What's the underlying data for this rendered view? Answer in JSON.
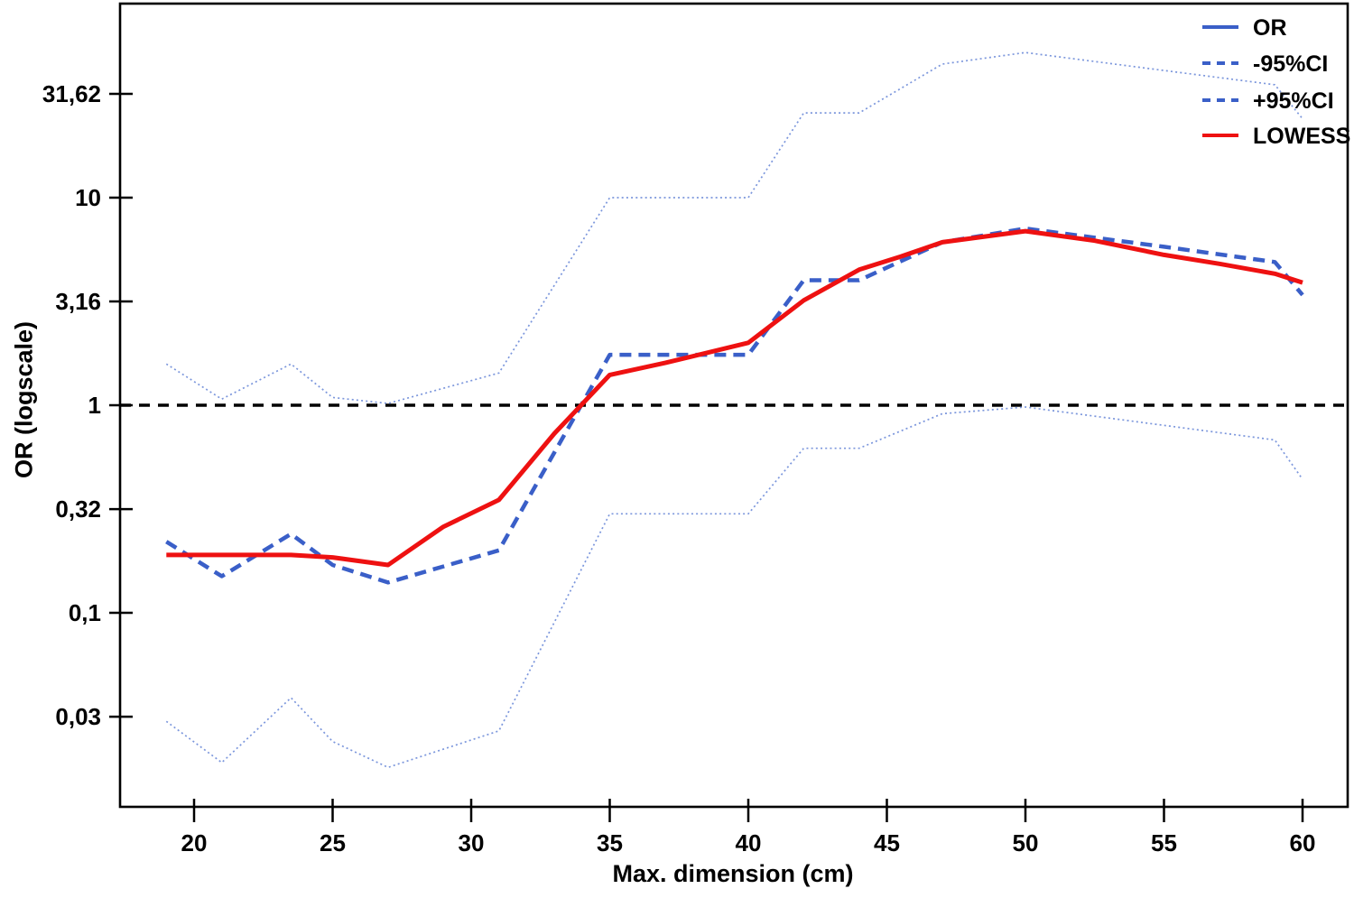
{
  "figure": {
    "background": "#ffffff",
    "axis_color": "#000000",
    "frame": true
  },
  "chart_data": {
    "type": "line",
    "title": "",
    "xlabel": "Max. dimension (cm)",
    "ylabel": "OR (logscale)",
    "x_scale": "linear",
    "y_scale": "log10",
    "grid": false,
    "legend_position": "top-right",
    "x_ticks": [
      20,
      25,
      30,
      35,
      40,
      45,
      50,
      55,
      60
    ],
    "y_ticks": [
      {
        "value": 31.623,
        "label": "31,62"
      },
      {
        "value": 10,
        "label": "10"
      },
      {
        "value": 3.162,
        "label": "3,16"
      },
      {
        "value": 1,
        "label": "1"
      },
      {
        "value": 0.316,
        "label": "0,32"
      },
      {
        "value": 0.1,
        "label": "0,1"
      },
      {
        "value": 0.0316,
        "label": "0,03"
      }
    ],
    "x_range": [
      17.3,
      61.6
    ],
    "y_range": [
      0.0116,
      86
    ],
    "reference_line_y": 1,
    "reference_line_style": {
      "color": "#000000",
      "dash": "12 9",
      "width": 3.5
    },
    "series": [
      {
        "name": "+95%CI",
        "color": "#7b96dc",
        "plot_style": "thin-dotted",
        "legend_sample": "dashed",
        "legend_color": "#3a5fc8",
        "x": [
          19,
          21,
          23.5,
          25,
          27,
          31,
          35,
          40,
          42,
          44,
          47,
          50,
          55,
          59,
          60
        ],
        "y": [
          1.58,
          1.07,
          1.58,
          1.09,
          1.02,
          1.43,
          10,
          10,
          25.6,
          25.6,
          44,
          50,
          41,
          35,
          24
        ]
      },
      {
        "name": "-95%CI",
        "color": "#7b96dc",
        "plot_style": "thin-dotted",
        "legend_sample": "dashed",
        "legend_color": "#3a5fc8",
        "x": [
          19,
          21,
          23.5,
          25,
          27,
          31,
          35,
          40,
          42,
          44,
          47,
          50,
          55,
          59,
          60
        ],
        "y": [
          0.03,
          0.019,
          0.039,
          0.024,
          0.018,
          0.027,
          0.3,
          0.3,
          0.62,
          0.62,
          0.91,
          0.98,
          0.8,
          0.68,
          0.44
        ]
      },
      {
        "name": "OR",
        "color": "#3a5fc8",
        "plot_style": "bold-dashed",
        "legend_sample": "solid",
        "legend_color": "#3a5fc8",
        "x": [
          19,
          21,
          23.5,
          25,
          27,
          31,
          35,
          40,
          42,
          44,
          47,
          50,
          55,
          59,
          60
        ],
        "y": [
          0.22,
          0.15,
          0.24,
          0.17,
          0.14,
          0.2,
          1.75,
          1.75,
          4.0,
          4.0,
          6.1,
          7.1,
          5.8,
          4.9,
          3.4
        ]
      },
      {
        "name": "LOWESS",
        "color": "#ee1111",
        "plot_style": "solid",
        "legend_sample": "solid",
        "legend_color": "#ee1111",
        "x": [
          19,
          21,
          23.5,
          25,
          27,
          29,
          31,
          33,
          35,
          37,
          40,
          42,
          44,
          45.5,
          47,
          50,
          52.5,
          55,
          57,
          59,
          60
        ],
        "y": [
          0.19,
          0.19,
          0.19,
          0.185,
          0.17,
          0.26,
          0.35,
          0.73,
          1.4,
          1.6,
          2.0,
          3.2,
          4.5,
          5.2,
          6.1,
          6.9,
          6.2,
          5.3,
          4.8,
          4.3,
          3.9
        ]
      }
    ],
    "legend_order": [
      "OR",
      "-95%CI",
      "+95%CI",
      "LOWESS"
    ]
  }
}
